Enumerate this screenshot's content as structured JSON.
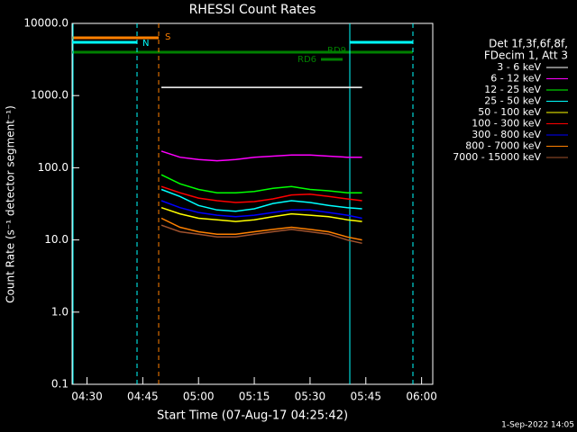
{
  "chart_data": {
    "type": "line",
    "title": "RHESSI Count Rates",
    "xlabel": "Start Time (07-Aug-17 04:25:42)",
    "ylabel": "Count Rate (s⁻¹ detector segment⁻¹)",
    "yscale": "log",
    "background": "#000000",
    "legend_title": [
      "Det 1f,3f,6f,8f,",
      "FDecim 1, Att 3"
    ],
    "annotations": [
      "S",
      "N",
      "RD6",
      "RD9"
    ],
    "footer": "1-Sep-2022 14:05",
    "xlim": [
      266,
      363
    ],
    "xticks": [
      {
        "value": 270,
        "label": "04:30"
      },
      {
        "value": 285,
        "label": "04:45"
      },
      {
        "value": 300,
        "label": "05:00"
      },
      {
        "value": 315,
        "label": "05:15"
      },
      {
        "value": 330,
        "label": "05:30"
      },
      {
        "value": 345,
        "label": "05:45"
      },
      {
        "value": 360,
        "label": "06:00"
      }
    ],
    "ylim": [
      0.1,
      10000
    ],
    "yticks": [
      {
        "value": 10000,
        "label": "10000.0"
      },
      {
        "value": 1000,
        "label": "1000.0"
      },
      {
        "value": 100,
        "label": "100.0"
      },
      {
        "value": 10,
        "label": "10.0"
      },
      {
        "value": 1,
        "label": "1.0"
      },
      0.1
    ],
    "x": [
      290,
      295,
      300,
      305,
      310,
      315,
      320,
      325,
      330,
      335,
      340,
      344
    ],
    "series": [
      {
        "name": "3 - 6 keV",
        "color": "#ffffff",
        "values": [
          1300,
          1300,
          1300,
          1300,
          1300,
          1300,
          1300,
          1300,
          1300,
          1300,
          1300,
          1300
        ]
      },
      {
        "name": "6 - 12 keV",
        "color": "#ff00ff",
        "values": [
          170,
          140,
          130,
          125,
          130,
          140,
          145,
          150,
          150,
          145,
          140,
          140
        ]
      },
      {
        "name": "12 - 25 keV",
        "color": "#00ff00",
        "values": [
          80,
          60,
          50,
          45,
          45,
          47,
          52,
          55,
          50,
          48,
          45,
          45
        ]
      },
      {
        "name": "25 - 50 keV",
        "color": "#00ffff",
        "values": [
          50,
          40,
          30,
          26,
          25,
          27,
          32,
          35,
          33,
          30,
          28,
          27
        ]
      },
      {
        "name": "50 - 100 keV",
        "color": "#ffff00",
        "values": [
          28,
          23,
          20,
          19,
          18,
          19,
          21,
          23,
          22,
          21,
          19,
          18
        ]
      },
      {
        "name": "100 - 300 keV",
        "color": "#ff0000",
        "values": [
          55,
          45,
          38,
          35,
          33,
          34,
          37,
          42,
          43,
          40,
          37,
          35
        ]
      },
      {
        "name": "300 - 800 keV",
        "color": "#0000ff",
        "values": [
          35,
          28,
          24,
          22,
          21,
          22,
          24,
          26,
          26,
          24,
          22,
          20
        ]
      },
      {
        "name": "800 - 7000 keV",
        "color": "#ff8000",
        "values": [
          20,
          15,
          13,
          12,
          12,
          13,
          14,
          15,
          14,
          13,
          11,
          10
        ]
      },
      {
        "name": "7000 - 15000 keV",
        "color": "#a0522d",
        "values": [
          16,
          13,
          12,
          11,
          11,
          12,
          13,
          14,
          13,
          12,
          10,
          9
        ]
      }
    ]
  }
}
